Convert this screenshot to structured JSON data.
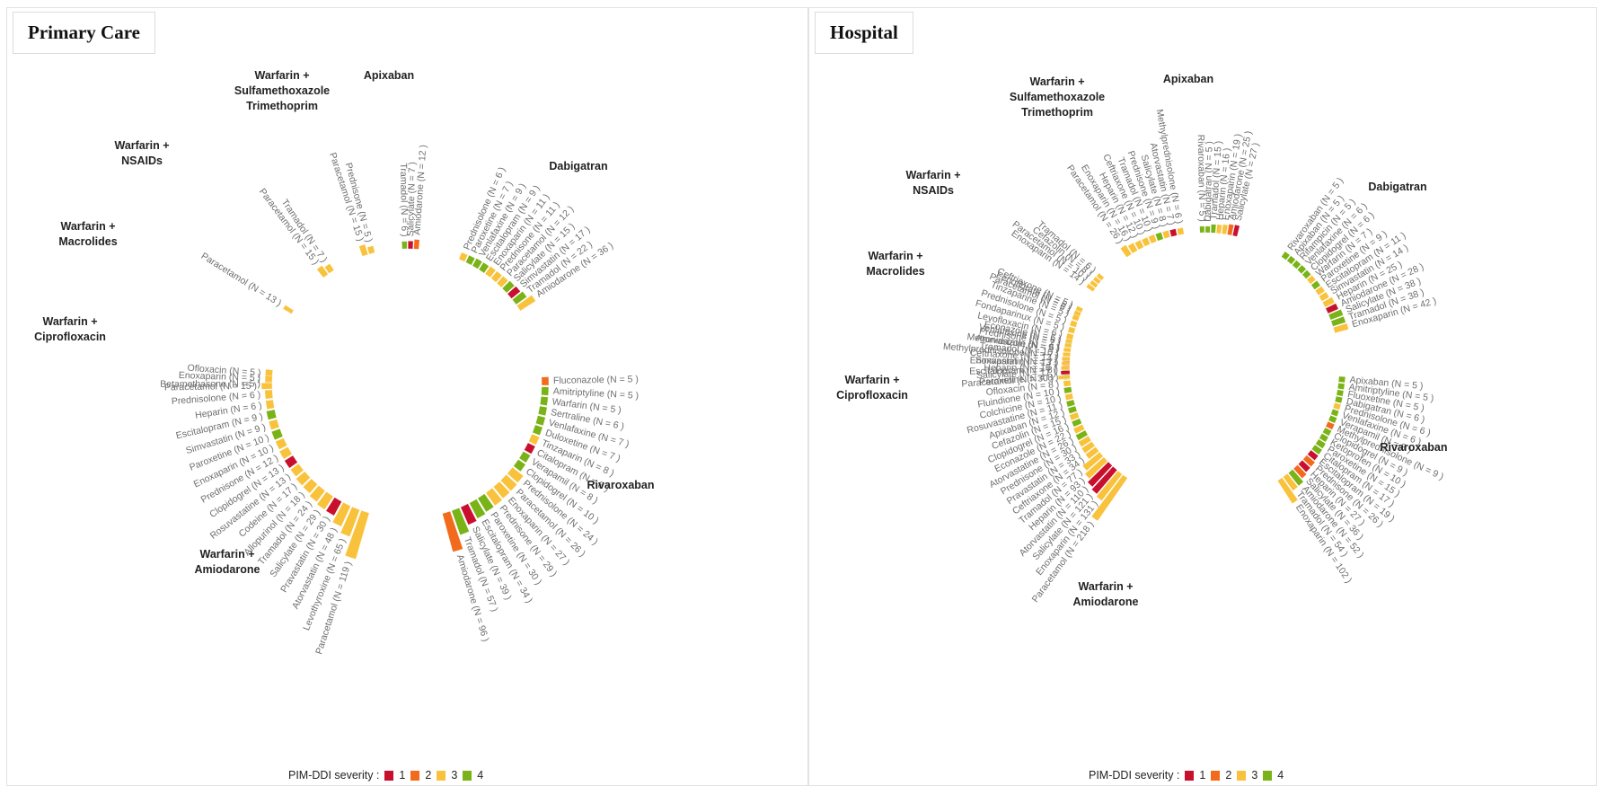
{
  "colors": {
    "1": "#c8102e",
    "2": "#f26b1d",
    "3": "#f9c23c",
    "4": "#7ab317"
  },
  "legend": {
    "label": "PIM-DDI severity :",
    "levels": [
      "1",
      "2",
      "3",
      "4"
    ]
  },
  "chart_data": [
    {
      "type": "radial-bar",
      "title": "Primary Care",
      "groups": [
        {
          "name": "Warfarin + Amiodarone",
          "a0": 198,
          "a1": 274,
          "items": [
            {
              "drug": "Paracetamol",
              "n": 119,
              "sev": 3
            },
            {
              "drug": "Levothyroxine",
              "n": 65,
              "sev": 3
            },
            {
              "drug": "Atorvastatin",
              "n": 48,
              "sev": 3
            },
            {
              "drug": "Pravastatin",
              "n": 30,
              "sev": 1
            },
            {
              "drug": "Salicylate",
              "n": 29,
              "sev": 3
            },
            {
              "drug": "Tramadol",
              "n": 24,
              "sev": 3
            },
            {
              "drug": "Allopurinol",
              "n": 18,
              "sev": 3
            },
            {
              "drug": "Codeine",
              "n": 17,
              "sev": 3
            },
            {
              "drug": "Rosuvastatine",
              "n": 13,
              "sev": 3
            },
            {
              "drug": "Clopidogrel",
              "n": 13,
              "sev": 1
            },
            {
              "drug": "Prednisone",
              "n": 12,
              "sev": 3
            },
            {
              "drug": "Enoxaparin",
              "n": 10,
              "sev": 3
            },
            {
              "drug": "Paroxetine",
              "n": 10,
              "sev": 4
            },
            {
              "drug": "Simvastatin",
              "n": 9,
              "sev": 3
            },
            {
              "drug": "Escitalopram",
              "n": 9,
              "sev": 4
            },
            {
              "drug": "Heparin",
              "n": 6,
              "sev": 3
            },
            {
              "drug": "Prednisolone",
              "n": 6,
              "sev": 3
            },
            {
              "drug": "Betamethasone",
              "n": 5,
              "sev": 3
            },
            {
              "drug": "Ofloxacin",
              "n": 5,
              "sev": 3
            }
          ]
        },
        {
          "name": "Warfarin + Ciprofloxacin",
          "a0": 269,
          "a1": 272,
          "items": [
            {
              "drug": "Paracetamol",
              "n": 15,
              "sev": 3
            },
            {
              "drug": "Enoxaparin",
              "n": 5,
              "sev": 3
            }
          ]
        },
        {
          "name": "Warfarin + Macrolides",
          "a0": 302,
          "a1": 303,
          "items": [
            {
              "drug": "Paracetamol",
              "n": 13,
              "sev": 3
            }
          ]
        },
        {
          "name": "Warfarin + NSAIDs",
          "a0": 323,
          "a1": 326,
          "items": [
            {
              "drug": "Paracetamol",
              "n": 15,
              "sev": 3
            },
            {
              "drug": "Tramadol",
              "n": 7,
              "sev": 3
            }
          ]
        },
        {
          "name": "Warfarin + Sulfamethoxazole Trimethoprim",
          "a0": 342,
          "a1": 345,
          "items": [
            {
              "drug": "Paracetamol",
              "n": 15,
              "sev": 3
            },
            {
              "drug": "Prednisone",
              "n": 5,
              "sev": 3
            }
          ]
        },
        {
          "name": "Apixaban",
          "a0": 359,
          "a1": 364,
          "items": [
            {
              "drug": "Tramadol",
              "n": 6,
              "sev": 4
            },
            {
              "drug": "Salicylate",
              "n": 7,
              "sev": 1
            },
            {
              "drug": "Amiodarone",
              "n": 12,
              "sev": 2
            }
          ]
        },
        {
          "name": "Dabigatran",
          "a0": 24,
          "a1": 56,
          "items": [
            {
              "drug": "Prednisolone",
              "n": 6,
              "sev": 3
            },
            {
              "drug": "Paroxetine",
              "n": 7,
              "sev": 4
            },
            {
              "drug": "Venlafaxine",
              "n": 9,
              "sev": 4
            },
            {
              "drug": "Escitalopram",
              "n": 9,
              "sev": 4
            },
            {
              "drug": "Enoxaparin",
              "n": 11,
              "sev": 3
            },
            {
              "drug": "Prednisone",
              "n": 11,
              "sev": 3
            },
            {
              "drug": "Paracetamol",
              "n": 12,
              "sev": 3
            },
            {
              "drug": "Salicylate",
              "n": 15,
              "sev": 4
            },
            {
              "drug": "Simvastatin",
              "n": 17,
              "sev": 1
            },
            {
              "drug": "Tramadol",
              "n": 22,
              "sev": 4
            },
            {
              "drug": "Amiodarone",
              "n": 36,
              "sev": 3
            }
          ]
        },
        {
          "name": "Rivaroxaban",
          "a0": 89,
          "a1": 163,
          "items": [
            {
              "drug": "Fluconazole",
              "n": 5,
              "sev": 2
            },
            {
              "drug": "Amitriptyline",
              "n": 5,
              "sev": 4
            },
            {
              "drug": "Warfarin",
              "n": 5,
              "sev": 4
            },
            {
              "drug": "Sertraline",
              "n": 6,
              "sev": 4
            },
            {
              "drug": "Venlafaxine",
              "n": 7,
              "sev": 4
            },
            {
              "drug": "Duloxetine",
              "n": 7,
              "sev": 4
            },
            {
              "drug": "Tinzaparin",
              "n": 8,
              "sev": 3
            },
            {
              "drug": "Citalopram",
              "n": 8,
              "sev": 1
            },
            {
              "drug": "Verapamil",
              "n": 8,
              "sev": 4
            },
            {
              "drug": "Clopidogrel",
              "n": 10,
              "sev": 4
            },
            {
              "drug": "Prednisolone",
              "n": 24,
              "sev": 3
            },
            {
              "drug": "Paracetamol",
              "n": 26,
              "sev": 3
            },
            {
              "drug": "Enoxaparin",
              "n": 27,
              "sev": 3
            },
            {
              "drug": "Prednisone",
              "n": 29,
              "sev": 3
            },
            {
              "drug": "Paroxetine",
              "n": 30,
              "sev": 4
            },
            {
              "drug": "Escitalopram",
              "n": 34,
              "sev": 4
            },
            {
              "drug": "Salicylate",
              "n": 39,
              "sev": 1
            },
            {
              "drug": "Tramadol",
              "n": 57,
              "sev": 4
            },
            {
              "drug": "Amiodarone",
              "n": 96,
              "sev": 2
            }
          ]
        }
      ]
    },
    {
      "type": "radial-bar",
      "title": "Hospital",
      "groups": [
        {
          "name": "Warfarin + Amiodarone",
          "a0": 216,
          "a1": 294,
          "items": [
            {
              "drug": "Paracetamol",
              "n": 218,
              "sev": 3
            },
            {
              "drug": "Enoxaparin",
              "n": 131,
              "sev": 3
            },
            {
              "drug": "Salicylate",
              "n": 121,
              "sev": 1
            },
            {
              "drug": "Atorvastatin",
              "n": 110,
              "sev": 1
            },
            {
              "drug": "Heparin",
              "n": 93,
              "sev": 3
            },
            {
              "drug": "Tramadol",
              "n": 77,
              "sev": 3
            },
            {
              "drug": "Ceftriaxone",
              "n": 34,
              "sev": 3
            },
            {
              "drug": "Pravastatin",
              "n": 33,
              "sev": 3
            },
            {
              "drug": "Prednisone",
              "n": 30,
              "sev": 3
            },
            {
              "drug": "Atorvastatine",
              "n": 26,
              "sev": 4
            },
            {
              "drug": "Econazole",
              "n": 22,
              "sev": 3
            },
            {
              "drug": "Clopidogrel",
              "n": 16,
              "sev": 4
            },
            {
              "drug": "Cefazolin",
              "n": 15,
              "sev": 3
            },
            {
              "drug": "Apixaban",
              "n": 12,
              "sev": 4
            },
            {
              "drug": "Rosuvastatine",
              "n": 11,
              "sev": 4
            },
            {
              "drug": "Colchicine",
              "n": 10,
              "sev": 3
            },
            {
              "drug": "Fluindione",
              "n": 10,
              "sev": 4
            },
            {
              "drug": "Ofloxacin",
              "n": 8,
              "sev": 3
            },
            {
              "drug": "Paroxetine",
              "n": 8,
              "sev": 4
            },
            {
              "drug": "Escitalopram",
              "n": 8,
              "sev": 4
            },
            {
              "drug": "Simvastatin",
              "n": 7,
              "sev": 1
            },
            {
              "drug": "Methylprednisolone",
              "n": 7,
              "sev": 3
            },
            {
              "drug": "Metronidazole",
              "n": 6,
              "sev": 3
            },
            {
              "drug": "Venlafaxine",
              "n": 6,
              "sev": 4
            },
            {
              "drug": "Levofloxacin",
              "n": 6,
              "sev": 3
            },
            {
              "drug": "Fondaparinux",
              "n": 5,
              "sev": 3
            },
            {
              "drug": "Prednisolone",
              "n": 5,
              "sev": 3
            },
            {
              "drug": "Tinzaparine",
              "n": 5,
              "sev": 3
            },
            {
              "drug": "Fenofibrate",
              "n": 5,
              "sev": 3
            }
          ]
        },
        {
          "name": "Warfarin + Ciprofloxacin",
          "a0": 266,
          "a1": 281,
          "items": [
            {
              "drug": "Paracetamol",
              "n": 30,
              "sev": 3
            },
            {
              "drug": "Salicylate",
              "n": 17,
              "sev": 1
            },
            {
              "drug": "Heparin",
              "n": 16,
              "sev": 3
            },
            {
              "drug": "Enoxaparin",
              "n": 13,
              "sev": 3
            },
            {
              "drug": "Ceftriaxone",
              "n": 13,
              "sev": 3
            },
            {
              "drug": "Tramadol",
              "n": 10,
              "sev": 3
            },
            {
              "drug": "Atorvastatin",
              "n": 9,
              "sev": 3
            },
            {
              "drug": "Prednisone",
              "n": 7,
              "sev": 3
            },
            {
              "drug": "Econazole",
              "n": 6,
              "sev": 3
            }
          ]
        },
        {
          "name": "Warfarin + Macrolides",
          "a0": 293,
          "a1": 295,
          "items": [
            {
              "drug": "Paracetamol",
              "n": 6,
              "sev": 3
            },
            {
              "drug": "Ceftriaxone",
              "n": 5,
              "sev": 3
            }
          ]
        },
        {
          "name": "Warfarin + NSAIDs",
          "a0": 305,
          "a1": 311,
          "items": [
            {
              "drug": "Enoxaparin",
              "n": 14,
              "sev": 3
            },
            {
              "drug": "Paracetamol",
              "n": 10,
              "sev": 3
            },
            {
              "drug": "Cefazolin",
              "n": 8,
              "sev": 3
            },
            {
              "drug": "Tramadol",
              "n": 6,
              "sev": 3
            }
          ]
        },
        {
          "name": "Warfarin + Sulfamethoxazole Trimethoprim",
          "a0": 326,
          "a1": 350,
          "items": [
            {
              "drug": "Paracetamol",
              "n": 26,
              "sev": 3
            },
            {
              "drug": "Enoxaparin",
              "n": 16,
              "sev": 3
            },
            {
              "drug": "Heparin",
              "n": 12,
              "sev": 3
            },
            {
              "drug": "Ceftriaxone",
              "n": 10,
              "sev": 3
            },
            {
              "drug": "Tramadol",
              "n": 10,
              "sev": 3
            },
            {
              "drug": "Prednisone",
              "n": 9,
              "sev": 4
            },
            {
              "drug": "Salicylate",
              "n": 8,
              "sev": 3
            },
            {
              "drug": "Atorvastatin",
              "n": 7,
              "sev": 1
            },
            {
              "drug": "Methylprednisolone",
              "n": 6,
              "sev": 3
            }
          ]
        },
        {
          "name": "Apixaban",
          "a0": 359,
          "a1": 13,
          "items": [
            {
              "drug": "Rivaroxaban",
              "n": 5,
              "sev": 4
            },
            {
              "drug": "Dabigatran",
              "n": 5,
              "sev": 4
            },
            {
              "drug": "Tramadol",
              "n": 15,
              "sev": 4
            },
            {
              "drug": "Heparin",
              "n": 16,
              "sev": 3
            },
            {
              "drug": "Enoxaparin",
              "n": 19,
              "sev": 3
            },
            {
              "drug": "Amiodarone",
              "n": 25,
              "sev": 2
            },
            {
              "drug": "Salicylate",
              "n": 27,
              "sev": 1
            }
          ]
        },
        {
          "name": "Dabigatran",
          "a0": 36,
          "a1": 74,
          "items": [
            {
              "drug": "Rivaroxaban",
              "n": 5,
              "sev": 4
            },
            {
              "drug": "Apixaban",
              "n": 5,
              "sev": 4
            },
            {
              "drug": "Rifampicin",
              "n": 5,
              "sev": 4
            },
            {
              "drug": "Venlafaxine",
              "n": 6,
              "sev": 4
            },
            {
              "drug": "Clopidogrel",
              "n": 6,
              "sev": 4
            },
            {
              "drug": "Warfarin",
              "n": 7,
              "sev": 3
            },
            {
              "drug": "Paroxetine",
              "n": 9,
              "sev": 4
            },
            {
              "drug": "Escitalopram",
              "n": 11,
              "sev": 3
            },
            {
              "drug": "Simvastatin",
              "n": 14,
              "sev": 3
            },
            {
              "drug": "Heparin",
              "n": 25,
              "sev": 3
            },
            {
              "drug": "Amiodarone",
              "n": 28,
              "sev": 1
            },
            {
              "drug": "Salicylate",
              "n": 38,
              "sev": 4
            },
            {
              "drug": "Tramadol",
              "n": 38,
              "sev": 4
            },
            {
              "drug": "Enoxaparin",
              "n": 42,
              "sev": 3
            }
          ]
        },
        {
          "name": "Rivaroxaban",
          "a0": 95,
          "a1": 146,
          "items": [
            {
              "drug": "Apixaban",
              "n": 5,
              "sev": 4
            },
            {
              "drug": "Amitriptyline",
              "n": 5,
              "sev": 4
            },
            {
              "drug": "Fluoxetine",
              "n": 5,
              "sev": 4
            },
            {
              "drug": "Dabigatran",
              "n": 6,
              "sev": 4
            },
            {
              "drug": "Prednisolone",
              "n": 6,
              "sev": 3
            },
            {
              "drug": "Venlafaxine",
              "n": 6,
              "sev": 4
            },
            {
              "drug": "Verapamil",
              "n": 8,
              "sev": 4
            },
            {
              "drug": "Methylprednisolone",
              "n": 9,
              "sev": 2
            },
            {
              "drug": "Clopidogrel",
              "n": 9,
              "sev": 4
            },
            {
              "drug": "Ketoprofen",
              "n": 10,
              "sev": 4
            },
            {
              "drug": "Paroxetine",
              "n": 15,
              "sev": 4
            },
            {
              "drug": "Citalopram",
              "n": 17,
              "sev": 4
            },
            {
              "drug": "Escitalopram",
              "n": 19,
              "sev": 1
            },
            {
              "drug": "Prednisone",
              "n": 26,
              "sev": 2
            },
            {
              "drug": "Heparin",
              "n": 27,
              "sev": 1
            },
            {
              "drug": "Salicylate",
              "n": 36,
              "sev": 2
            },
            {
              "drug": "Amiodarone",
              "n": 52,
              "sev": 4
            },
            {
              "drug": "Tramadol",
              "n": 54,
              "sev": 3
            },
            {
              "drug": "Enoxaparin",
              "n": 102,
              "sev": 3
            }
          ]
        }
      ]
    }
  ]
}
